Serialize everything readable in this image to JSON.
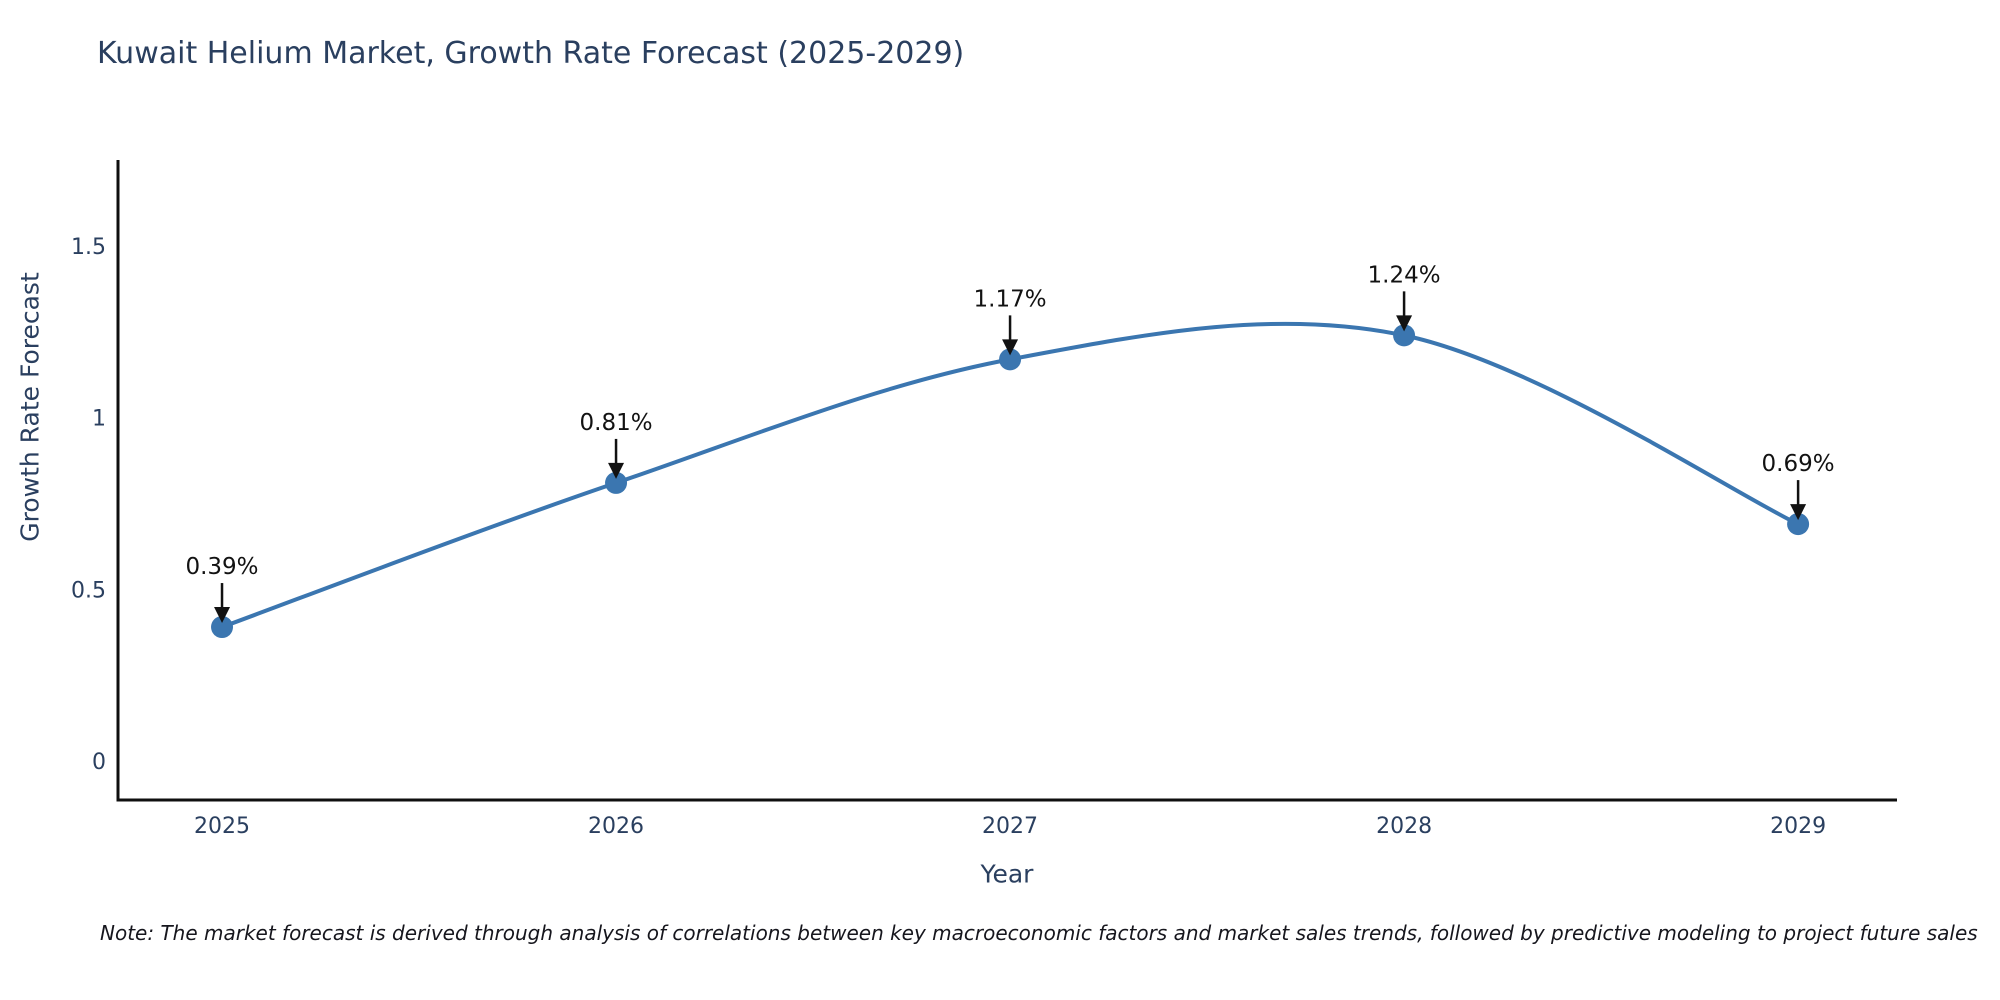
{
  "chart_data": {
    "type": "line",
    "line_shape": "spline",
    "title": "Kuwait Helium Market, Growth Rate Forecast (2025-2029)",
    "xlabel": "Year",
    "ylabel": "Growth Rate Forecast",
    "x": [
      2025,
      2026,
      2027,
      2028,
      2029
    ],
    "xtick_labels": [
      "2025",
      "2026",
      "2027",
      "2028",
      "2029"
    ],
    "series": [
      {
        "name": "Growth Rate Forecast",
        "values": [
          0.39,
          0.81,
          1.17,
          1.24,
          0.69
        ]
      }
    ],
    "point_labels": [
      "0.39%",
      "0.81%",
      "1.17%",
      "1.24%",
      "0.69%"
    ],
    "ytick_values": [
      0,
      0.5,
      1,
      1.5
    ],
    "ytick_labels": [
      "0",
      "0.5",
      "1",
      "1.5"
    ],
    "ylim": [
      -0.114,
      1.751
    ],
    "xlim": [
      2024.736,
      2029.251
    ],
    "grid": false,
    "legend": "none",
    "colors": {
      "line": "#3b76b0",
      "marker": "#3b76b0",
      "axis": "#0f0f0f",
      "title_text": "#2a3f5f",
      "tick_text": "#2a3f5f",
      "annotation": "#121212",
      "background": "#ffffff"
    },
    "note": "Note: The market forecast is derived through analysis of correlations between key macroeconomic factors and market sales trends, followed by predictive modeling to project future sales"
  }
}
